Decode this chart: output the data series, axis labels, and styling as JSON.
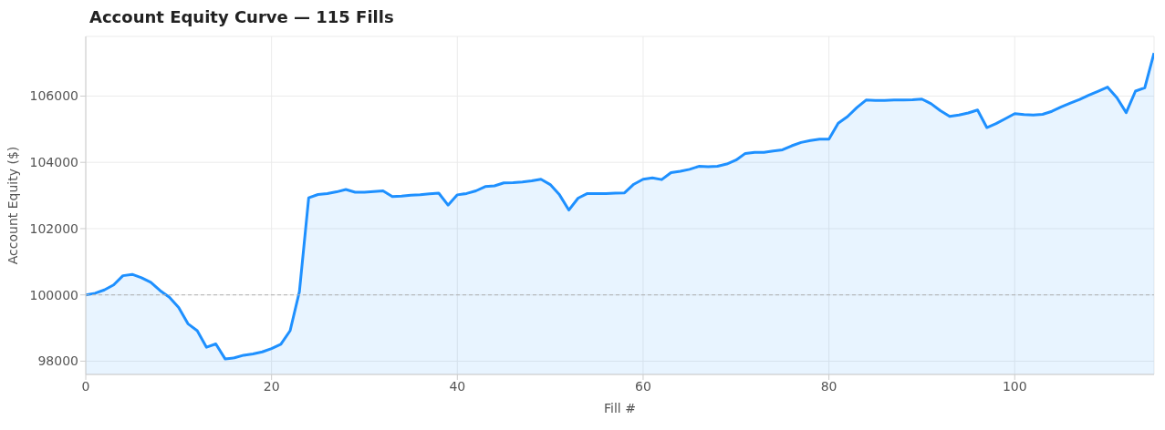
{
  "chart_data": {
    "type": "area",
    "title": "Account Equity Curve — 115 Fills",
    "xlabel": "Fill #",
    "ylabel": "Account Equity ($)",
    "x": [
      0,
      1,
      2,
      3,
      4,
      5,
      6,
      7,
      8,
      9,
      10,
      11,
      12,
      13,
      14,
      15,
      16,
      17,
      18,
      19,
      20,
      21,
      22,
      23,
      24,
      25,
      26,
      27,
      28,
      29,
      30,
      31,
      32,
      33,
      34,
      35,
      36,
      37,
      38,
      39,
      40,
      41,
      42,
      43,
      44,
      45,
      46,
      47,
      48,
      49,
      50,
      51,
      52,
      53,
      54,
      55,
      56,
      57,
      58,
      59,
      60,
      61,
      62,
      63,
      64,
      65,
      66,
      67,
      68,
      69,
      70,
      71,
      72,
      73,
      74,
      75,
      76,
      77,
      78,
      79,
      80,
      81,
      82,
      83,
      84,
      85,
      86,
      87,
      88,
      89,
      90,
      91,
      92,
      93,
      94,
      95,
      96,
      97,
      98,
      99,
      100,
      101,
      102,
      103,
      104,
      105,
      106,
      107,
      108,
      109,
      110,
      111,
      112,
      113,
      114,
      115
    ],
    "series": [
      {
        "color": "#1e90ff",
        "values": [
          100000,
          100050,
          100150,
          100300,
          100580,
          100620,
          100520,
          100380,
          100130,
          99930,
          99620,
          99130,
          98920,
          98420,
          98520,
          98070,
          98100,
          98180,
          98220,
          98280,
          98380,
          98510,
          98920,
          100100,
          102930,
          103030,
          103060,
          103110,
          103180,
          103100,
          103100,
          103120,
          103140,
          102970,
          102980,
          103010,
          103020,
          103050,
          103070,
          102710,
          103020,
          103060,
          103140,
          103270,
          103290,
          103380,
          103390,
          103410,
          103440,
          103490,
          103330,
          103020,
          102560,
          102920,
          103060,
          103060,
          103060,
          103070,
          103080,
          103340,
          103490,
          103530,
          103480,
          103690,
          103730,
          103790,
          103880,
          103870,
          103880,
          103950,
          104070,
          104270,
          104300,
          104300,
          104340,
          104380,
          104500,
          104600,
          104660,
          104700,
          104700,
          105180,
          105380,
          105650,
          105880,
          105870,
          105870,
          105880,
          105880,
          105890,
          105910,
          105770,
          105560,
          105390,
          105430,
          105490,
          105580,
          105050,
          105170,
          105320,
          105470,
          105440,
          105430,
          105450,
          105540,
          105670,
          105790,
          105900,
          106030,
          106150,
          106270,
          105950,
          105500,
          106150,
          106250,
          107300
        ]
      }
    ],
    "xlim": [
      0,
      115
    ],
    "xticks": [
      0,
      20,
      40,
      60,
      80,
      100
    ],
    "ylim": [
      97600,
      107800
    ],
    "yticks": [
      98000,
      100000,
      102000,
      104000,
      106000
    ],
    "ref_lines": [
      {
        "axis": "y",
        "value": 100000,
        "color": "#b0b0b0",
        "line_style": "dashed"
      }
    ],
    "grid": true,
    "marker": "none",
    "line_style": "solid"
  }
}
